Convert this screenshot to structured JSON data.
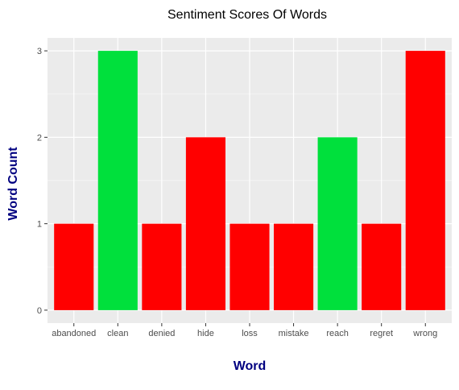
{
  "chart_data": {
    "type": "bar",
    "title": "Sentiment Scores Of Words",
    "xlabel": "Word",
    "ylabel": "Word Count",
    "categories": [
      "abandoned",
      "clean",
      "denied",
      "hide",
      "loss",
      "mistake",
      "reach",
      "regret",
      "wrong"
    ],
    "values": [
      1,
      3,
      1,
      2,
      1,
      1,
      2,
      1,
      3
    ],
    "sentiment": [
      "negative",
      "positive",
      "negative",
      "negative",
      "negative",
      "negative",
      "positive",
      "negative",
      "negative"
    ],
    "colors": {
      "negative": "#ff0000",
      "positive": "#00e03c"
    },
    "yticks": [
      0,
      1,
      2,
      3
    ],
    "ylim": [
      -0.15,
      3.15
    ],
    "grid": true,
    "panel_background": "#ebebeb",
    "legend": "none"
  }
}
